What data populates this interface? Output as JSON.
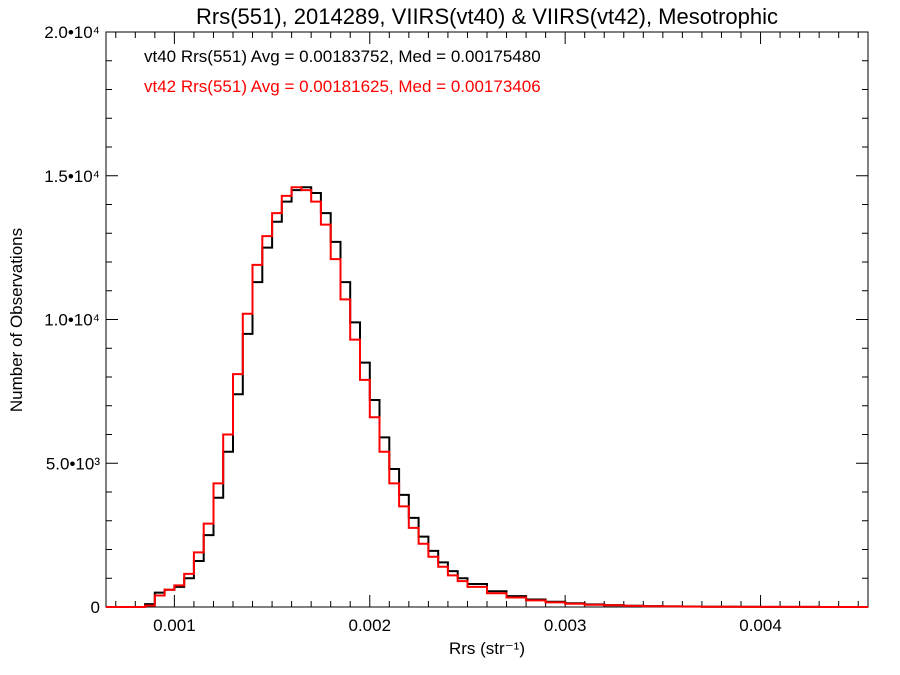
{
  "chart_data": {
    "type": "line",
    "step": true,
    "title": "Rrs(551), 2014289, VIIRS(vt40) & VIIRS(vt42), Mesotrophic",
    "xlabel": "Rrs (str⁻¹)",
    "ylabel": "Number of Observations",
    "xlim": [
      0.00065,
      0.00455
    ],
    "ylim": [
      0,
      20000
    ],
    "x_ticks": [
      0.001,
      0.002,
      0.003,
      0.004
    ],
    "x_tick_labels": [
      "0.001",
      "0.002",
      "0.003",
      "0.004"
    ],
    "y_ticks": [
      0,
      5000,
      10000,
      15000,
      20000
    ],
    "y_tick_labels": [
      "0",
      "5.0•10³",
      "1.0•10⁴",
      "1.5•10⁴",
      "2.0•10⁴"
    ],
    "grid": false,
    "legend_position": "top-left",
    "annotations": [
      "vt40 Rrs(551) Avg = 0.00183752, Med = 0.00175480",
      "vt42 Rrs(551) Avg = 0.00181625, Med = 0.00173406"
    ],
    "series": [
      {
        "label": "vt40",
        "color": "#000000",
        "x": [
          0.00065,
          0.0008,
          0.00085,
          0.0009,
          0.00095,
          0.001,
          0.00105,
          0.0011,
          0.00115,
          0.0012,
          0.00125,
          0.0013,
          0.00135,
          0.0014,
          0.00145,
          0.0015,
          0.00155,
          0.0016,
          0.00165,
          0.0017,
          0.00175,
          0.0018,
          0.00185,
          0.0019,
          0.00195,
          0.002,
          0.00205,
          0.0021,
          0.00215,
          0.0022,
          0.00225,
          0.0023,
          0.00235,
          0.0024,
          0.00245,
          0.0025,
          0.0026,
          0.0027,
          0.0028,
          0.0029,
          0.003,
          0.0031,
          0.0032,
          0.0033,
          0.0034,
          0.0035,
          0.0036,
          0.0037,
          0.0038,
          0.0039,
          0.004,
          0.0041,
          0.0042,
          0.0043,
          0.0044,
          0.00455
        ],
        "y": [
          0,
          0,
          100,
          500,
          600,
          700,
          1000,
          1600,
          2500,
          3800,
          5400,
          7400,
          9500,
          11300,
          12500,
          13400,
          14100,
          14500,
          14600,
          14400,
          13700,
          12700,
          11300,
          9900,
          8500,
          7200,
          5900,
          4800,
          3900,
          3100,
          2450,
          1950,
          1550,
          1250,
          1000,
          800,
          550,
          380,
          260,
          180,
          130,
          90,
          65,
          45,
          30,
          22,
          16,
          12,
          9,
          6,
          4,
          3,
          2,
          1,
          1,
          0
        ]
      },
      {
        "label": "vt42",
        "color": "#ff0000",
        "x": [
          0.00065,
          0.0008,
          0.00085,
          0.0009,
          0.00095,
          0.001,
          0.00105,
          0.0011,
          0.00115,
          0.0012,
          0.00125,
          0.0013,
          0.00135,
          0.0014,
          0.00145,
          0.0015,
          0.00155,
          0.0016,
          0.00165,
          0.0017,
          0.00175,
          0.0018,
          0.00185,
          0.0019,
          0.00195,
          0.002,
          0.00205,
          0.0021,
          0.00215,
          0.0022,
          0.00225,
          0.0023,
          0.00235,
          0.0024,
          0.00245,
          0.0025,
          0.0026,
          0.0027,
          0.0028,
          0.0029,
          0.003,
          0.0031,
          0.0032,
          0.0033,
          0.0034,
          0.0035,
          0.0036,
          0.0037,
          0.0038,
          0.0039,
          0.004,
          0.0041,
          0.0042,
          0.0043,
          0.0044,
          0.00455
        ],
        "y": [
          0,
          0,
          50,
          400,
          600,
          750,
          1150,
          1900,
          2900,
          4300,
          6000,
          8100,
          10200,
          11900,
          12900,
          13700,
          14300,
          14600,
          14500,
          14100,
          13300,
          12100,
          10700,
          9300,
          7900,
          6600,
          5400,
          4300,
          3500,
          2750,
          2200,
          1750,
          1400,
          1100,
          900,
          700,
          480,
          330,
          230,
          160,
          115,
          80,
          58,
          40,
          27,
          20,
          14,
          10,
          8,
          5,
          4,
          3,
          2,
          1,
          1,
          0
        ]
      }
    ]
  }
}
